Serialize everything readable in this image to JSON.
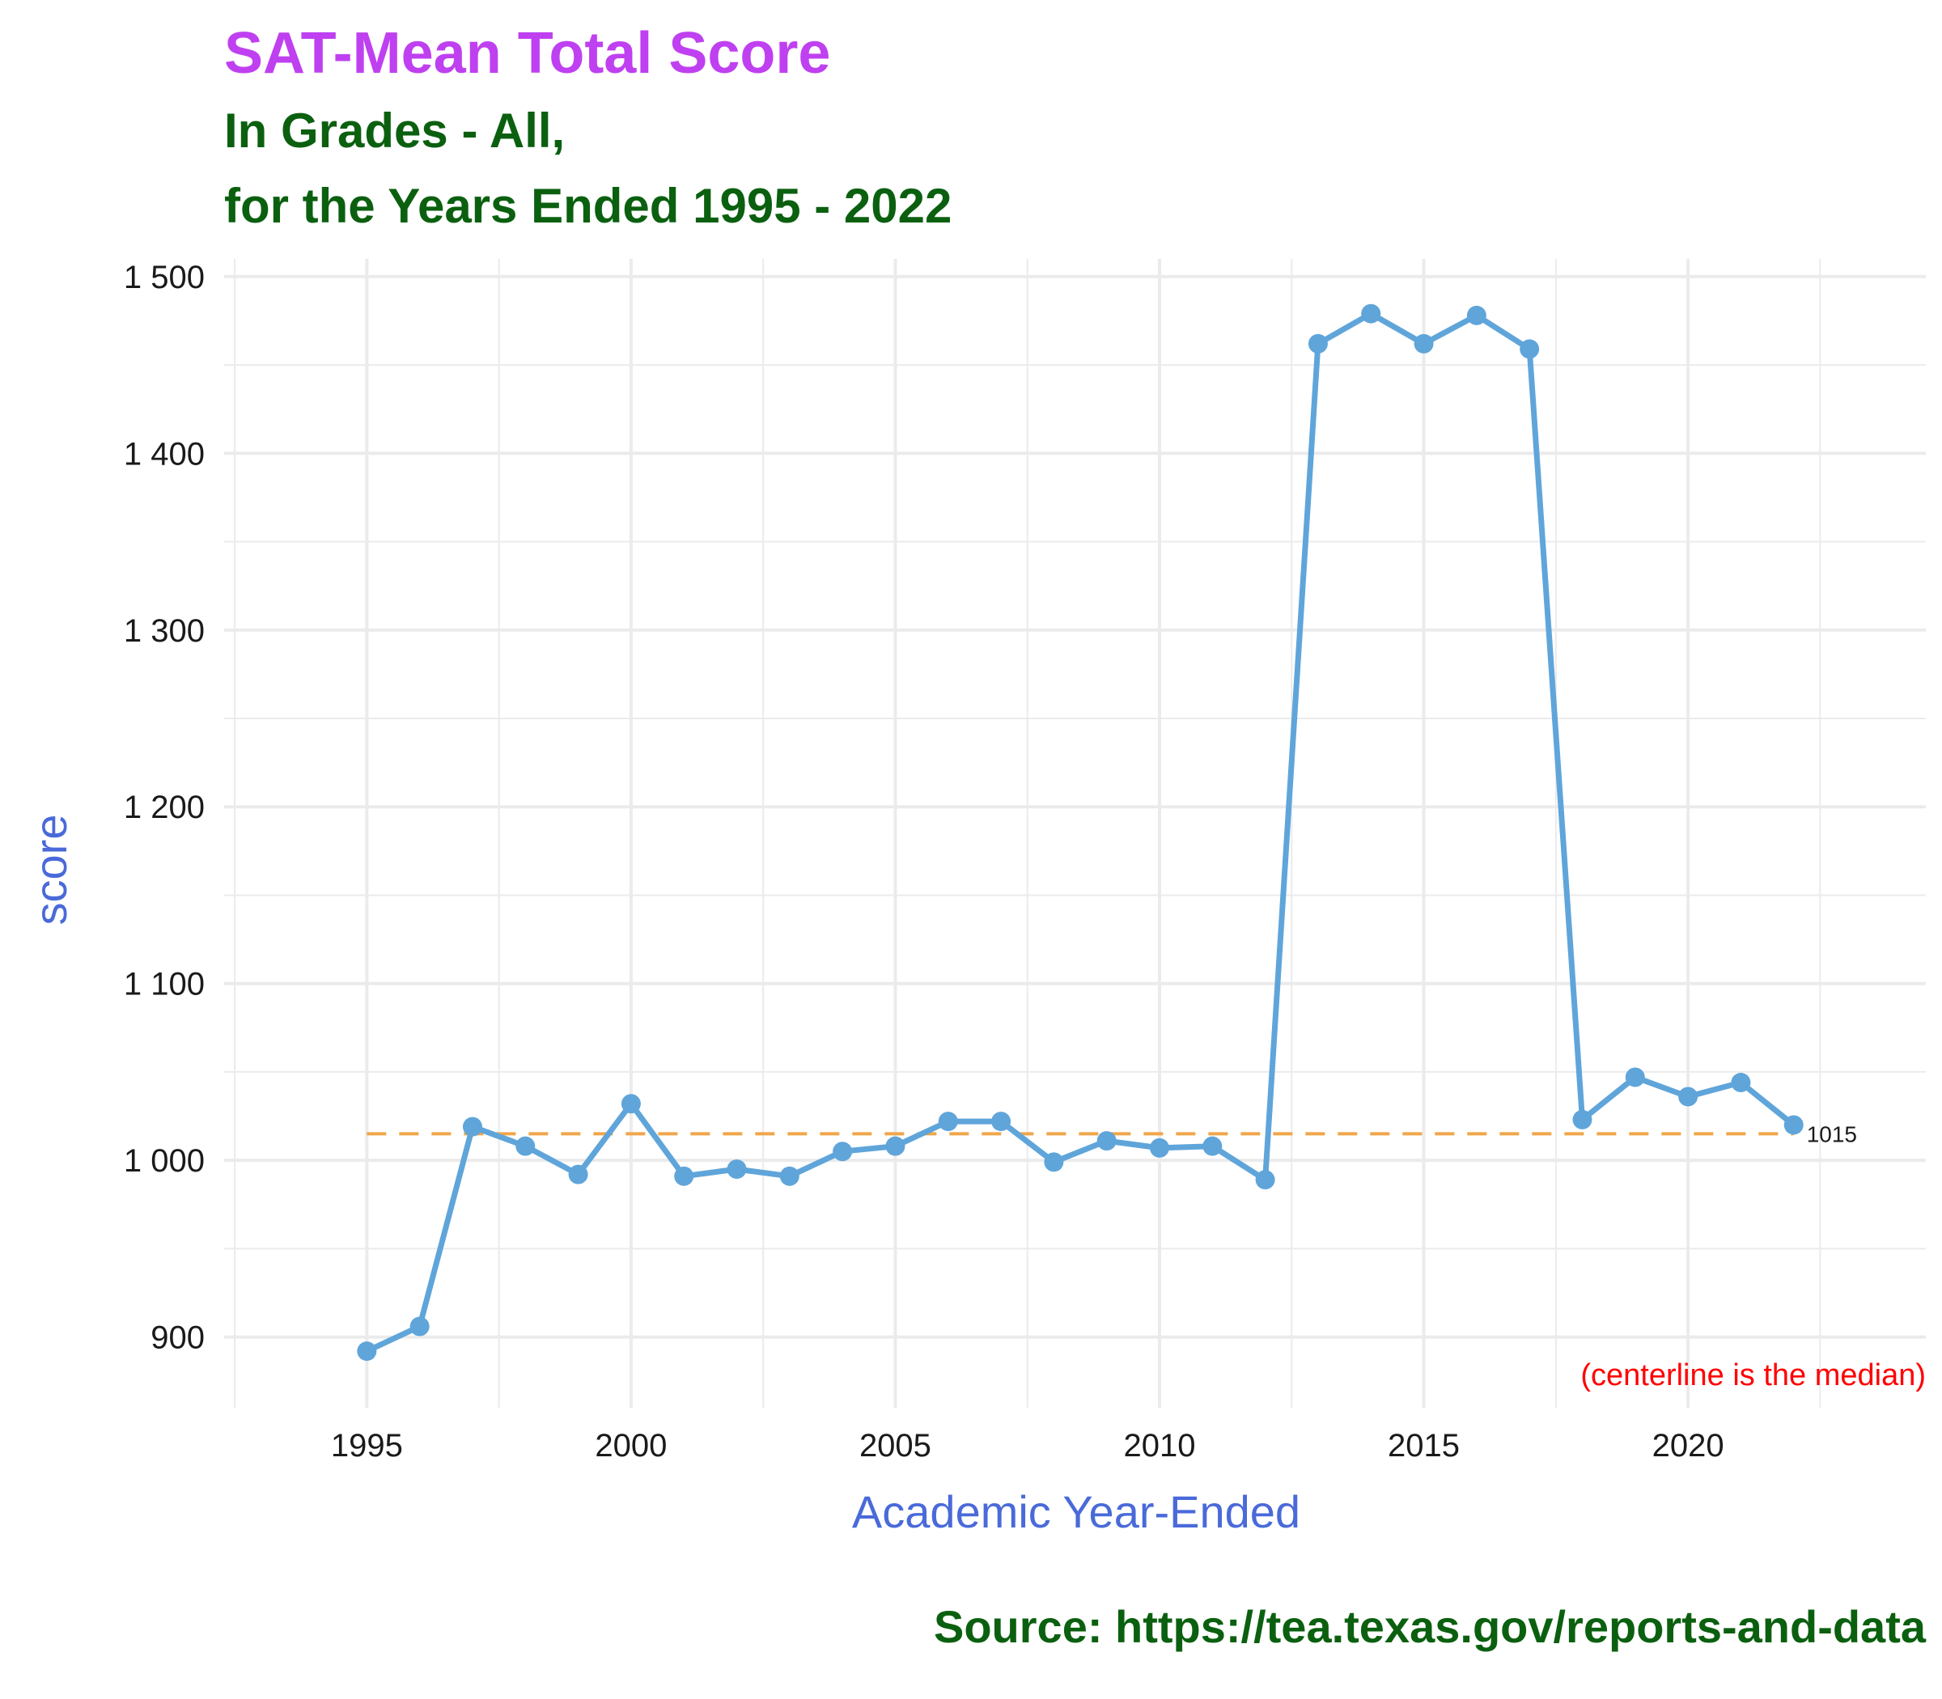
{
  "colors": {
    "title": "#bf40f0",
    "subtitle": "#0b6010",
    "axis_title": "#4a6ad9",
    "line": "#5fa5da",
    "median_line": "#f0a64a",
    "note": "#ff0000",
    "caption": "#0b6010",
    "grid": "#ebebeb"
  },
  "chart_data": {
    "type": "line",
    "title": "SAT-Mean Total Score",
    "subtitle_lines": [
      "In Grades - All,",
      "for the Years Ended 1995 - 2022"
    ],
    "xlabel": "Academic Year-Ended",
    "ylabel": "score",
    "x": [
      1995,
      1996,
      1997,
      1998,
      1999,
      2000,
      2001,
      2002,
      2003,
      2004,
      2005,
      2006,
      2007,
      2008,
      2009,
      2010,
      2011,
      2012,
      2013,
      2014,
      2015,
      2016,
      2017,
      2018,
      2019,
      2020,
      2021,
      2022
    ],
    "series": [
      {
        "values": [
          892,
          906,
          1019,
          1008,
          992,
          1032,
          991,
          995,
          991,
          1005,
          1008,
          1022,
          1022,
          999,
          1011,
          1007,
          1008,
          989,
          1462,
          1479,
          1462,
          1478,
          1459,
          1023,
          1047,
          1036,
          1044,
          1020
        ]
      }
    ],
    "xlim": [
      1992.3,
      2024.5
    ],
    "ylim": [
      860,
      1510
    ],
    "x_ticks": [
      1995,
      2000,
      2005,
      2010,
      2015,
      2020
    ],
    "x_tick_labels": [
      "1995",
      "2000",
      "2005",
      "2010",
      "2015",
      "2020"
    ],
    "y_ticks": [
      900,
      1000,
      1100,
      1200,
      1300,
      1400,
      1500
    ],
    "y_tick_labels": [
      "900",
      "1 000",
      "1 100",
      "1 200",
      "1 300",
      "1 400",
      "1 500"
    ],
    "median": 1015,
    "median_label": "1015",
    "note": "(centerline is the median)",
    "caption": "Source:  https://tea.texas.gov/reports-and-data",
    "grid": true,
    "legend": "none"
  }
}
